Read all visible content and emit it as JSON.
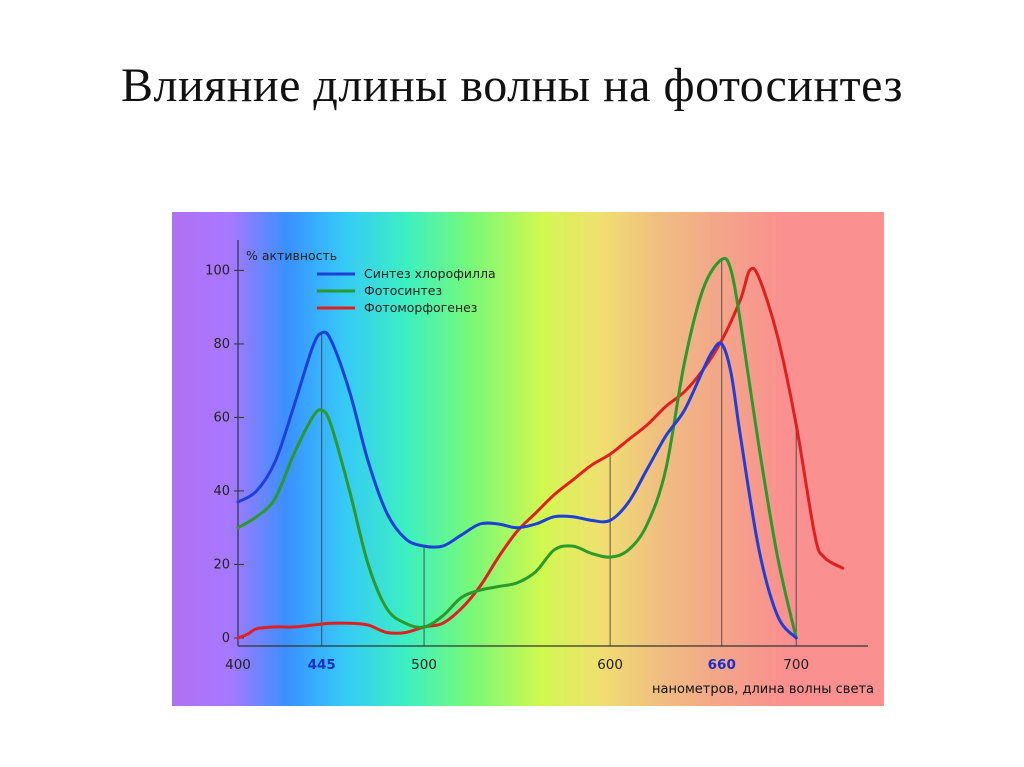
{
  "slide": {
    "title": "Влияние длины волны на фотосинтез"
  },
  "chart_data": {
    "type": "line",
    "title": "",
    "xlabel": "нанометров, длина волны света",
    "ylabel": "% активность",
    "xlim": [
      400,
      730
    ],
    "ylim": [
      0,
      105
    ],
    "x_ticks": [
      "400",
      "445",
      "500",
      "600",
      "660",
      "700"
    ],
    "x_tick_values": [
      400,
      445,
      500,
      600,
      660,
      700
    ],
    "x_tick_emphasis": [
      false,
      true,
      false,
      false,
      true,
      false
    ],
    "y_ticks": [
      "0",
      "20",
      "40",
      "60",
      "80",
      "100"
    ],
    "y_tick_values": [
      0,
      20,
      40,
      60,
      80,
      100
    ],
    "guide_lines_x": [
      445,
      500,
      600,
      660,
      700
    ],
    "background": "visible light spectrum gradient (violet to red)",
    "legend_position": "top-left",
    "series": [
      {
        "name": "Синтез хлорофилла",
        "color": "#1f3fd6",
        "x": [
          400,
          410,
          420,
          430,
          440,
          445,
          450,
          460,
          470,
          480,
          490,
          500,
          510,
          520,
          530,
          540,
          550,
          560,
          570,
          580,
          590,
          600,
          610,
          620,
          630,
          640,
          650,
          655,
          660,
          665,
          670,
          680,
          690,
          700
        ],
        "y": [
          37,
          40,
          48,
          63,
          79,
          83,
          81,
          67,
          48,
          34,
          27,
          25,
          25,
          28,
          31,
          31,
          30,
          31,
          33,
          33,
          32,
          32,
          37,
          46,
          55,
          62,
          73,
          78,
          80,
          72,
          55,
          24,
          6,
          0
        ]
      },
      {
        "name": "Фотосинтез",
        "color": "#2a9a2a",
        "x": [
          400,
          410,
          420,
          430,
          440,
          445,
          450,
          460,
          470,
          480,
          490,
          500,
          510,
          520,
          530,
          540,
          550,
          560,
          570,
          580,
          590,
          600,
          610,
          620,
          630,
          640,
          650,
          660,
          665,
          670,
          680,
          690,
          700
        ],
        "y": [
          30,
          33,
          38,
          50,
          60,
          62,
          58,
          40,
          20,
          8,
          4,
          3,
          6,
          11,
          13,
          14,
          15,
          18,
          24,
          25,
          23,
          22,
          24,
          31,
          46,
          75,
          95,
          103,
          100,
          86,
          52,
          22,
          0
        ]
      },
      {
        "name": "Фотоморфогенез",
        "color": "#e02020",
        "x": [
          400,
          405,
          410,
          420,
          430,
          440,
          450,
          460,
          470,
          480,
          490,
          500,
          510,
          520,
          530,
          540,
          550,
          560,
          570,
          580,
          590,
          600,
          610,
          620,
          630,
          640,
          650,
          660,
          670,
          675,
          680,
          690,
          700,
          710,
          715,
          725
        ],
        "y": [
          0,
          1,
          2.5,
          3,
          3,
          3.5,
          4,
          4,
          3.5,
          1.5,
          1.5,
          3,
          4,
          8,
          14,
          22,
          29,
          34,
          39,
          43,
          47,
          50,
          54,
          58,
          63,
          67,
          73,
          81,
          92,
          100,
          98,
          82,
          58,
          28,
          22,
          19
        ]
      }
    ]
  }
}
